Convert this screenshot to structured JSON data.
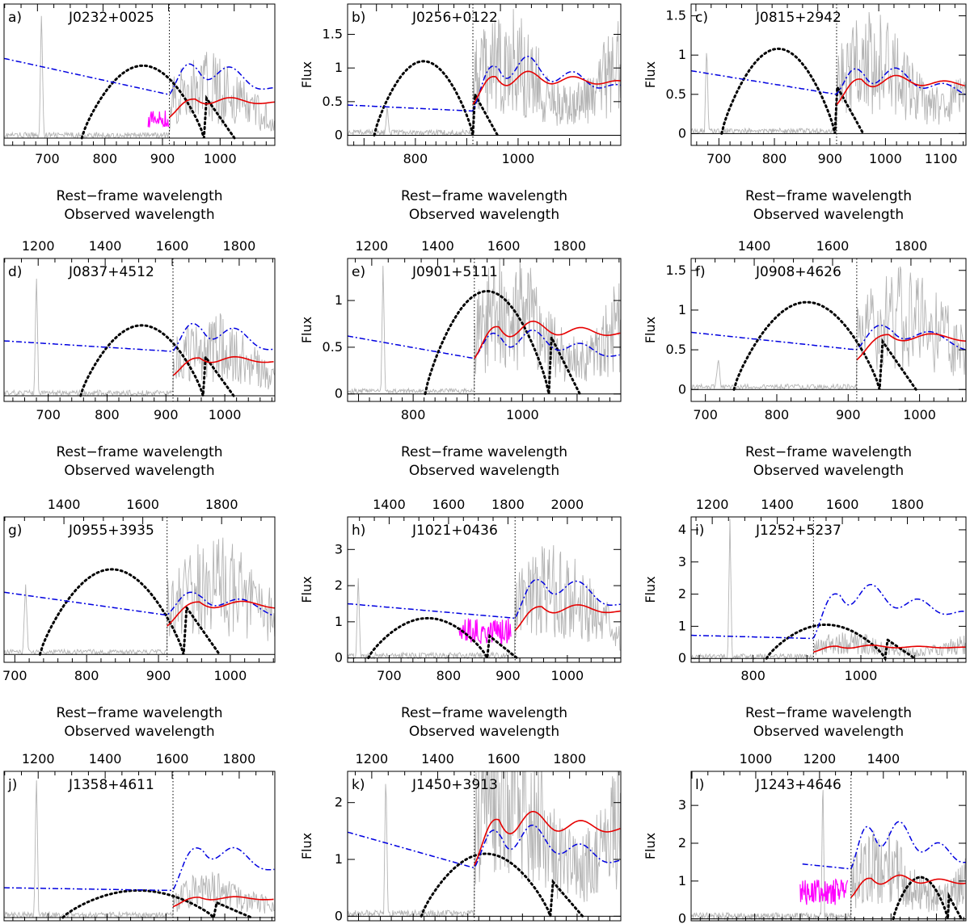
{
  "figure": {
    "y_axis_label": "Flux",
    "x_axis_label_bottom": "Rest−frame wavelength",
    "x_axis_label_top": "Observed wavelength",
    "legend_colors": {
      "spectrum": "#b4b4b4",
      "model_red": "#e60000",
      "model_blue": "#0000e0",
      "filter_black": "#000000",
      "extra_magenta": "#ff00ff"
    }
  },
  "chart_data": [
    {
      "type": "line",
      "panel_label": "a)",
      "title": "J0232+0025",
      "xlim": [
        625,
        1095
      ],
      "ylim": [
        -0.1,
        1.85
      ],
      "xticks": [
        700,
        800,
        900,
        1000
      ],
      "yticks": [],
      "show_ylabel": false,
      "obs_ticks": [
        1200,
        1400,
        1600,
        1800
      ],
      "obs_factor": 1.757,
      "gray_peak": [
        690,
        1.75
      ],
      "blue_left": 1.1,
      "blue_drop": 0.6,
      "blue_peak": 1.6,
      "red_peak": 0.72,
      "black": [
        760,
        1025,
        1.0
      ],
      "magenta": [
        875,
        912,
        0.38
      ],
      "show_xaxis_label": true,
      "show_top_label": true
    },
    {
      "type": "line",
      "panel_label": "b)",
      "title": "J0256+0122",
      "xlim": [
        668,
        1200
      ],
      "ylim": [
        -0.15,
        1.95
      ],
      "xticks": [
        800,
        1000
      ],
      "yticks": [
        0,
        0.5,
        1,
        1.5
      ],
      "show_ylabel": true,
      "obs_ticks": [
        1200,
        1400,
        1600,
        1800
      ],
      "obs_factor": 1.657,
      "gray_peak": [
        745,
        0.4
      ],
      "blue_left": 0.45,
      "blue_drop": 0.36,
      "blue_peak": 1.65,
      "red_peak": 1.15,
      "black": [
        720,
        960,
        1.1
      ],
      "magenta": null,
      "show_xaxis_label": true,
      "show_top_label": true
    },
    {
      "type": "line",
      "panel_label": "c)",
      "title": "J0815+2942",
      "xlim": [
        650,
        1145
      ],
      "ylim": [
        -0.15,
        1.65
      ],
      "xticks": [
        700,
        800,
        900,
        1000,
        1100
      ],
      "yticks": [
        0,
        0.5,
        1,
        1.5
      ],
      "show_ylabel": true,
      "obs_ticks": [
        1400,
        1600,
        1800
      ],
      "obs_factor": 1.822,
      "gray_peak": [
        678,
        1.1
      ],
      "blue_left": 0.8,
      "blue_drop": 0.5,
      "blue_peak": 1.25,
      "red_peak": 0.92,
      "black": [
        705,
        960,
        1.08
      ],
      "magenta": null,
      "show_xaxis_label": true,
      "show_top_label": true
    },
    {
      "type": "line",
      "panel_label": "d)",
      "title": "J0837+4512",
      "xlim": [
        625,
        1085
      ],
      "ylim": [
        -0.08,
        1.95
      ],
      "xticks": [
        700,
        800,
        900,
        1000
      ],
      "yticks": [],
      "show_ylabel": false,
      "obs_ticks": [
        1200,
        1400,
        1600,
        1800
      ],
      "obs_factor": 1.757,
      "gray_peak": [
        680,
        1.7
      ],
      "blue_left": 0.78,
      "blue_drop": 0.63,
      "blue_peak": 1.6,
      "red_peak": 0.72,
      "black": [
        755,
        1015,
        1.0
      ],
      "magenta": null,
      "show_xaxis_label": true,
      "show_top_label": true
    },
    {
      "type": "line",
      "panel_label": "e)",
      "title": "J0901+5111",
      "xlim": [
        680,
        1180
      ],
      "ylim": [
        -0.08,
        1.45
      ],
      "xticks": [
        800,
        1000
      ],
      "yticks": [
        0,
        0.5,
        1
      ],
      "show_ylabel": true,
      "obs_ticks": [
        1200,
        1400,
        1600,
        1800
      ],
      "obs_factor": 1.657,
      "gray_peak": [
        745,
        1.4
      ],
      "blue_left": 0.62,
      "blue_drop": 0.38,
      "blue_peak": 0.98,
      "red_peak": 0.95,
      "black": [
        822,
        1105,
        1.1
      ],
      "magenta": null,
      "show_xaxis_label": true,
      "show_top_label": true
    },
    {
      "type": "line",
      "panel_label": "f)",
      "title": "J0908+4626",
      "xlim": [
        680,
        1065
      ],
      "ylim": [
        -0.15,
        1.65
      ],
      "xticks": [
        700,
        800,
        900,
        1000
      ],
      "yticks": [
        0,
        0.5,
        1,
        1.5
      ],
      "show_ylabel": true,
      "obs_ticks": [
        1400,
        1600,
        1800
      ],
      "obs_factor": 1.822,
      "gray_peak": [
        718,
        0.35
      ],
      "blue_left": 0.72,
      "blue_drop": 0.5,
      "blue_peak": 1.28,
      "red_peak": 0.93,
      "black": [
        740,
        995,
        1.1
      ],
      "magenta": null,
      "show_xaxis_label": true,
      "show_top_label": true
    },
    {
      "type": "line",
      "panel_label": "g)",
      "title": "J0955+3935",
      "xlim": [
        685,
        1062
      ],
      "ylim": [
        -0.12,
        2.1
      ],
      "xticks": [
        700,
        800,
        900,
        1000
      ],
      "yticks": [],
      "show_ylabel": false,
      "obs_ticks": [
        1400,
        1600,
        1800
      ],
      "obs_factor": 1.822,
      "gray_peak": [
        715,
        1.0
      ],
      "blue_left": 0.95,
      "blue_drop": 0.6,
      "blue_peak": 1.5,
      "red_peak": 1.08,
      "black": [
        735,
        985,
        1.3
      ],
      "magenta": null,
      "show_xaxis_label": true,
      "show_top_label": true
    },
    {
      "type": "line",
      "panel_label": "h)",
      "title": "J1021+0436",
      "xlim": [
        630,
        1090
      ],
      "ylim": [
        -0.12,
        3.9
      ],
      "xticks": [
        700,
        800,
        900,
        1000
      ],
      "yticks": [
        0,
        1,
        2,
        3
      ],
      "show_ylabel": true,
      "obs_ticks": [
        1400,
        1600,
        1800,
        2000
      ],
      "obs_factor": 2.0,
      "gray_peak": [
        648,
        2.2
      ],
      "blue_left": 1.5,
      "blue_drop": 1.1,
      "blue_peak": 3.5,
      "red_peak": 1.9,
      "black": [
        665,
        915,
        1.1
      ],
      "magenta": [
        818,
        905,
        1.1
      ],
      "show_xaxis_label": true,
      "show_top_label": true
    },
    {
      "type": "line",
      "panel_label": "i)",
      "title": "J1252+5237",
      "xlim": [
        685,
        1195
      ],
      "ylim": [
        -0.12,
        4.4
      ],
      "xticks": [
        800,
        1000
      ],
      "yticks": [
        0,
        1,
        2,
        3,
        4
      ],
      "show_ylabel": true,
      "obs_ticks": [
        1200,
        1400,
        1600,
        1800
      ],
      "obs_factor": 1.657,
      "gray_peak": [
        757,
        4.3
      ],
      "blue_left": 0.72,
      "blue_drop": 0.62,
      "blue_peak": 3.25,
      "red_peak": 0.5,
      "black": [
        825,
        1100,
        1.05
      ],
      "magenta": null,
      "show_xaxis_label": true,
      "show_top_label": true
    },
    {
      "type": "line",
      "panel_label": "j)",
      "title": "J1358+4611",
      "xlim": [
        625,
        1085
      ],
      "ylim": [
        -0.06,
        2.7
      ],
      "xticks": [],
      "yticks": [],
      "show_ylabel": false,
      "obs_ticks": [
        1200,
        1400,
        1600,
        1800
      ],
      "obs_factor": 1.757,
      "gray_peak": [
        680,
        2.65
      ],
      "blue_left": 0.55,
      "blue_drop": 0.5,
      "blue_peak": 2.15,
      "red_peak": 0.5,
      "black": [
        725,
        1045,
        0.5
      ],
      "magenta": null,
      "show_xaxis_label": false,
      "show_top_label": false
    },
    {
      "type": "line",
      "panel_label": "k)",
      "title": "J1450+3913",
      "xlim": [
        680,
        1180
      ],
      "ylim": [
        -0.08,
        2.55
      ],
      "xticks": [],
      "yticks": [
        0,
        1,
        2
      ],
      "show_ylabel": true,
      "obs_ticks": [
        1200,
        1400,
        1600,
        1800
      ],
      "obs_factor": 1.657,
      "gray_peak": [
        750,
        2.5
      ],
      "blue_left": 1.48,
      "blue_drop": 0.85,
      "blue_peak": 2.3,
      "red_peak": 2.25,
      "black": [
        815,
        1110,
        1.1
      ],
      "magenta": null,
      "show_xaxis_label": false,
      "show_top_label": false
    },
    {
      "type": "line",
      "panel_label": "l)",
      "title": "J1243+4646",
      "xlim": [
        560,
        1165
      ],
      "ylim": [
        -0.05,
        3.9
      ],
      "xticks": [],
      "yticks": [
        0,
        1,
        2,
        3
      ],
      "show_ylabel": true,
      "obs_ticks": [
        1000,
        1200,
        1400
      ],
      "obs_factor": 1.424,
      "gray_peak": [
        850,
        3.8
      ],
      "blue_left": 1.45,
      "blue_drop": 1.32,
      "blue_peak": 3.75,
      "red_peak": 1.42,
      "blue_start": 805,
      "black": [
        1005,
        1155,
        1.1
      ],
      "magenta": [
        800,
        905,
        1.05
      ],
      "show_xaxis_label": false,
      "show_top_label": false
    }
  ]
}
